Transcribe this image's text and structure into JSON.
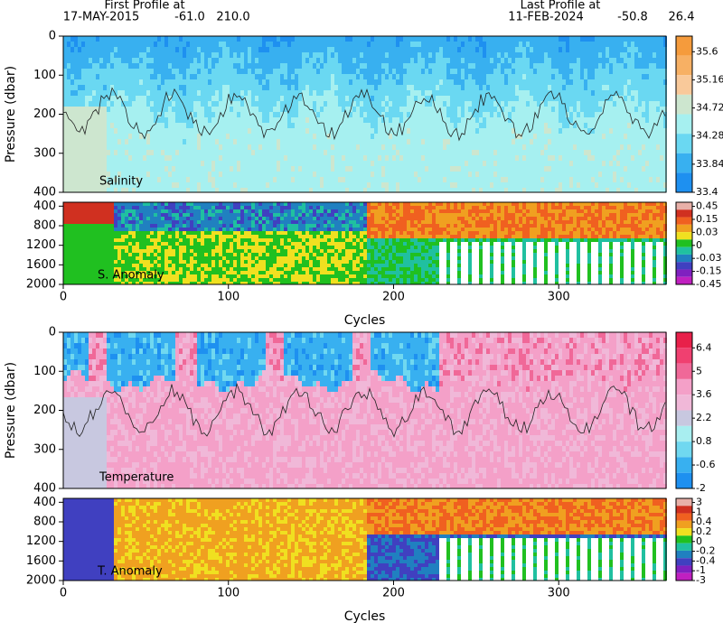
{
  "header": {
    "first_label": "First Profile at",
    "first_date": "17-MAY-2015",
    "first_lat": "-61.0",
    "first_lon": "210.0",
    "last_label": "Last Profile at",
    "last_date": "11-FEB-2024",
    "last_lat": "-50.8",
    "last_lon": "26.4"
  },
  "chart_data": [
    {
      "type": "heatmap",
      "title": "Salinity",
      "y_label": "Pressure (dbar)",
      "xlim": [
        0,
        365
      ],
      "ylim": [
        0,
        400
      ],
      "yticks": [
        0,
        100,
        200,
        300,
        400
      ],
      "colorbar": {
        "levels": [
          35.6,
          35.16,
          34.72,
          34.28,
          33.84,
          33.4
        ],
        "colors": [
          "#f59b3c",
          "#f7b064",
          "#f9c99a",
          "#cde6cf",
          "#a6f0f0",
          "#6ad8f2",
          "#38b0f0",
          "#1e90f0"
        ]
      }
    },
    {
      "type": "heatmap",
      "title": "S. Anomaly",
      "x_label": "Cycles",
      "xlim": [
        0,
        365
      ],
      "xticks": [
        0,
        100,
        200,
        300
      ],
      "ylim": [
        320,
        2000
      ],
      "yticks": [
        400,
        800,
        1200,
        1600,
        2000
      ],
      "colorbar": {
        "levels": [
          0.45,
          0.15,
          0.03,
          0,
          -0.03,
          -0.15,
          -0.45
        ],
        "colors": [
          "#e8b0a8",
          "#d03020",
          "#f06020",
          "#f0a020",
          "#f0e020",
          "#20c020",
          "#20c0a0",
          "#2080c0",
          "#4040c0",
          "#8020c0",
          "#c020c0"
        ]
      }
    },
    {
      "type": "heatmap",
      "title": "Temperature",
      "y_label": "Pressure (dbar)",
      "xlim": [
        0,
        365
      ],
      "ylim": [
        0,
        400
      ],
      "yticks": [
        0,
        100,
        200,
        300,
        400
      ],
      "colorbar": {
        "levels": [
          6.4,
          5,
          3.6,
          2.2,
          0.8,
          -0.6,
          -2
        ],
        "colors": [
          "#e8204a",
          "#f04070",
          "#f06898",
          "#f4a0c8",
          "#f0b8d8",
          "#c8c8e0",
          "#a8eef0",
          "#70d8f0",
          "#38b0f0",
          "#1e90f0"
        ]
      }
    },
    {
      "type": "heatmap",
      "title": "T. Anomaly",
      "x_label": "Cycles",
      "xlim": [
        0,
        365
      ],
      "xticks": [
        0,
        100,
        200,
        300
      ],
      "ylim": [
        320,
        2000
      ],
      "yticks": [
        400,
        800,
        1200,
        1600,
        2000
      ],
      "colorbar": {
        "levels": [
          3,
          1,
          0.4,
          0.2,
          0,
          -0.2,
          -0.4,
          -1,
          -3
        ],
        "colors": [
          "#e8b0a8",
          "#d03020",
          "#f06020",
          "#f0a020",
          "#f0e020",
          "#20c020",
          "#20c0a0",
          "#2080c0",
          "#4040c0",
          "#8020c0",
          "#c020c0"
        ]
      }
    }
  ]
}
